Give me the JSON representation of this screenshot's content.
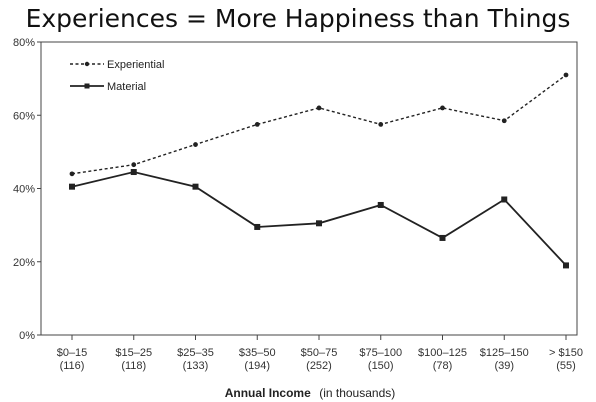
{
  "chart_data": {
    "type": "line",
    "title": "Experiences = More Happiness than Things",
    "categories": [
      "$0–15",
      "$15–25",
      "$25–35",
      "$35–50",
      "$50–75",
      "$75–100",
      "$100–125",
      "$125–150",
      "> $150"
    ],
    "category_counts": [
      "(116)",
      "(118)",
      "(133)",
      "(194)",
      "(252)",
      "(150)",
      "(78)",
      "(39)",
      "(55)"
    ],
    "series": [
      {
        "name": "Experiential",
        "style": "dashed",
        "marker": "circle",
        "values": [
          44,
          46.5,
          52,
          57.5,
          62,
          57.5,
          62,
          58.5,
          71
        ]
      },
      {
        "name": "Material",
        "style": "solid",
        "marker": "square",
        "values": [
          40.5,
          44.5,
          40.5,
          29.5,
          30.5,
          35.5,
          26.5,
          37,
          19
        ]
      }
    ],
    "xlabel": "Annual Income",
    "xlabel_units": "(in thousands)",
    "ylabel": "",
    "ylim": [
      0,
      80
    ],
    "yticks": [
      0,
      20,
      40,
      60,
      80
    ],
    "ytick_labels": [
      "0%",
      "20%",
      "40%",
      "60%",
      "80%"
    ],
    "grid": false,
    "legend_position": "top-left",
    "colors": {
      "line": "#222222",
      "background": "#ffffff"
    }
  }
}
